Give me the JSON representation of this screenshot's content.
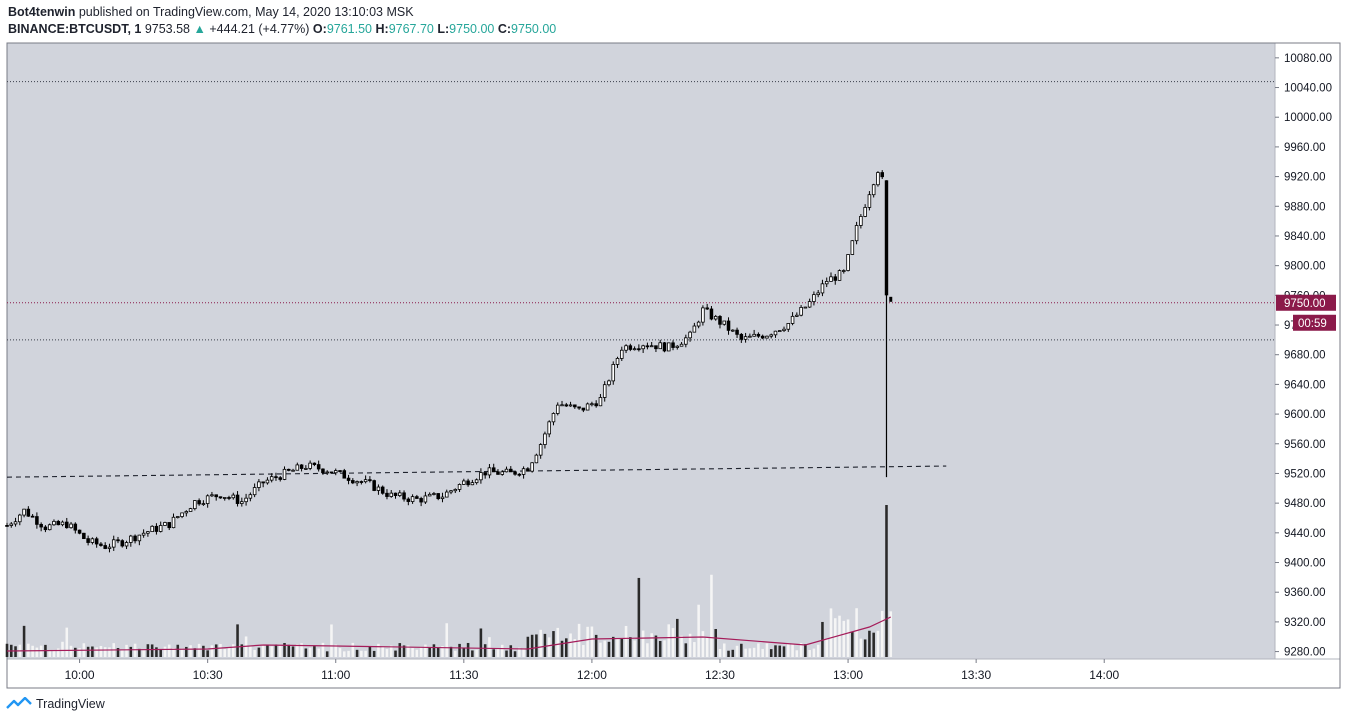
{
  "header": {
    "publisher": "Bot4tenwin",
    "published_on": "published on TradingView.com, May 14, 2020 13:10:03 MSK",
    "symbol": "BINANCE:BTCUSDT, 1",
    "last": "9753.58",
    "change": "+444.21 (+4.77%)",
    "open_label": "O:",
    "open": "9761.50",
    "high_label": "H:",
    "high": "9767.70",
    "low_label": "L:",
    "low": "9750.00",
    "close_label": "C:",
    "close": "9750.00"
  },
  "footer": {
    "brand": "TradingView"
  },
  "colors": {
    "plot_bg": "#d1d4dc",
    "candle": "#000000",
    "volume_light": "#f5f5f5",
    "volume_dark": "#2a2a2a",
    "ma": "#a51c5a",
    "price_tag": "#8b1a4a"
  },
  "chart_data": {
    "type": "candlestick",
    "ylim": [
      9270,
      10100
    ],
    "y_ticks": [
      "10080.00",
      "10040.00",
      "10000.00",
      "9960.00",
      "9920.00",
      "9880.00",
      "9840.00",
      "9800.00",
      "9760.00",
      "9720.00",
      "9680.00",
      "9640.00",
      "9600.00",
      "9560.00",
      "9520.00",
      "9480.00",
      "9440.00",
      "9400.00",
      "9360.00",
      "9320.00",
      "9280.00"
    ],
    "x_ticks": [
      "10:00",
      "10:30",
      "11:00",
      "11:30",
      "12:00",
      "12:30",
      "13:00",
      "13:30",
      "14:00"
    ],
    "last_price_label": "9750.00",
    "countdown_label": "00:59",
    "horizontal_lines": [
      {
        "style": "dotted",
        "price": 10048
      },
      {
        "style": "dotted",
        "price": 9750
      },
      {
        "style": "dotted",
        "price": 9700
      }
    ],
    "trend_line": {
      "style": "dashed",
      "from": [
        "09:43",
        9515
      ],
      "to": [
        "13:23",
        9530
      ]
    },
    "price_path": [
      [
        "09:43",
        9450
      ],
      [
        "09:47",
        9470
      ],
      [
        "09:52",
        9448
      ],
      [
        "09:57",
        9452
      ],
      [
        "10:02",
        9428
      ],
      [
        "10:06",
        9422
      ],
      [
        "10:10",
        9428
      ],
      [
        "10:15",
        9440
      ],
      [
        "10:21",
        9452
      ],
      [
        "10:27",
        9482
      ],
      [
        "10:33",
        9492
      ],
      [
        "10:38",
        9482
      ],
      [
        "10:43",
        9508
      ],
      [
        "10:49",
        9522
      ],
      [
        "10:53",
        9530
      ],
      [
        "10:58",
        9525
      ],
      [
        "11:03",
        9515
      ],
      [
        "11:08",
        9505
      ],
      [
        "11:13",
        9490
      ],
      [
        "11:19",
        9485
      ],
      [
        "11:25",
        9490
      ],
      [
        "11:30",
        9508
      ],
      [
        "11:35",
        9522
      ],
      [
        "11:41",
        9520
      ],
      [
        "11:45",
        9528
      ],
      [
        "11:48",
        9560
      ],
      [
        "11:52",
        9615
      ],
      [
        "11:57",
        9605
      ],
      [
        "12:02",
        9620
      ],
      [
        "12:07",
        9690
      ],
      [
        "12:12",
        9695
      ],
      [
        "12:18",
        9690
      ],
      [
        "12:23",
        9705
      ],
      [
        "12:26",
        9740
      ],
      [
        "12:31",
        9720
      ],
      [
        "12:35",
        9700
      ],
      [
        "12:41",
        9708
      ],
      [
        "12:46",
        9722
      ],
      [
        "12:51",
        9750
      ],
      [
        "12:55",
        9780
      ],
      [
        "12:59",
        9790
      ],
      [
        "13:02",
        9850
      ],
      [
        "13:05",
        9900
      ],
      [
        "13:07",
        9930
      ],
      [
        "13:08",
        9915
      ],
      [
        "13:09",
        9755
      ],
      [
        "13:10",
        9750
      ]
    ],
    "spike_candle": {
      "time": "13:09",
      "open": 9915,
      "close": 9760,
      "high": 9915,
      "low": 9515
    },
    "volume": {
      "spike_time": "13:09",
      "ma_path": [
        [
          "09:43",
          0.06
        ],
        [
          "10:30",
          0.08
        ],
        [
          "10:43",
          0.12
        ],
        [
          "11:00",
          0.11
        ],
        [
          "11:45",
          0.08
        ],
        [
          "12:00",
          0.18
        ],
        [
          "12:26",
          0.2
        ],
        [
          "12:50",
          0.12
        ],
        [
          "13:05",
          0.3
        ],
        [
          "13:10",
          0.4
        ]
      ]
    }
  }
}
